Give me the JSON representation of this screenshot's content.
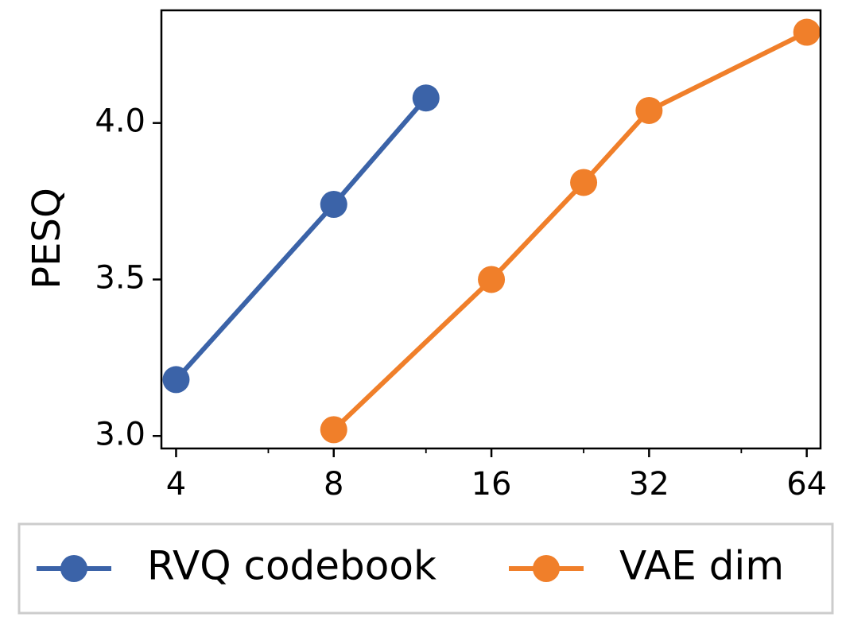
{
  "chart_data": {
    "type": "line",
    "title": "",
    "xlabel": "",
    "ylabel": "PESQ",
    "xscale": "log2",
    "xlim": [
      3.75,
      68
    ],
    "ylim": [
      2.96,
      4.36
    ],
    "x_ticks": [
      4,
      8,
      16,
      32,
      64
    ],
    "x_tick_labels": [
      "4",
      "8",
      "16",
      "32",
      "64"
    ],
    "y_ticks": [
      3.0,
      3.5,
      4.0
    ],
    "y_tick_labels": [
      "3.0",
      "3.5",
      "4.0"
    ],
    "grid": false,
    "legend_position": "bottom",
    "series": [
      {
        "name": "RVQ codebook",
        "color": "#3b63a8",
        "x": [
          4,
          8,
          12
        ],
        "y": [
          3.18,
          3.74,
          4.08
        ]
      },
      {
        "name": "VAE dim",
        "color": "#f07f2a",
        "x": [
          8,
          16,
          24,
          32,
          64
        ],
        "y": [
          3.02,
          3.5,
          3.81,
          4.04,
          4.29
        ]
      }
    ]
  }
}
